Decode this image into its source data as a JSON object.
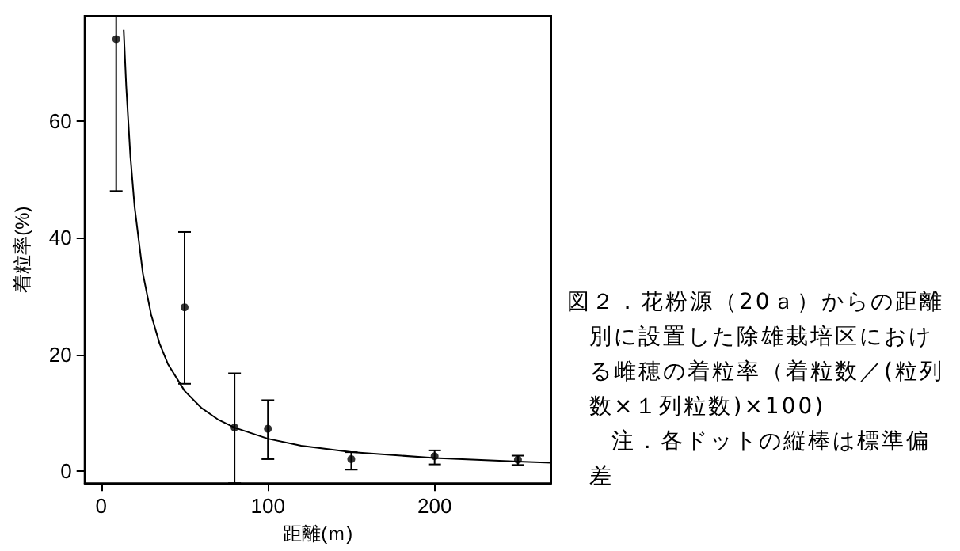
{
  "chart_data": {
    "type": "scatter",
    "xlabel": "距離(ｍ)",
    "ylabel": "着粒率(%)",
    "xlim": [
      -10,
      270
    ],
    "ylim": [
      -2,
      78
    ],
    "xticks": [
      0,
      100,
      200
    ],
    "yticks": [
      0,
      20,
      40,
      60
    ],
    "grid": false,
    "marker": "circle",
    "series": [
      {
        "color": "#000000",
        "x": [
          9,
          50,
          80,
          100,
          150,
          200,
          250
        ],
        "values": [
          74,
          28.1,
          7.5,
          7.3,
          2.1,
          2.6,
          2.0
        ],
        "errors": [
          [
            48,
            78
          ],
          [
            15,
            41
          ],
          [
            -2,
            16.8
          ],
          [
            2.1,
            12.2
          ],
          [
            0.3,
            3.3
          ],
          [
            1.2,
            3.6
          ],
          [
            1.1,
            2.7
          ]
        ]
      },
      {
        "type": "line",
        "color": "#000000",
        "marker": "none",
        "line_style": "solid",
        "x": [
          13.5,
          15,
          17.5,
          20,
          25,
          30,
          35,
          40,
          50,
          60,
          70,
          80,
          100,
          120,
          150,
          200,
          250,
          270
        ],
        "values": [
          75.6,
          66.0,
          54.0,
          45.4,
          33.9,
          26.8,
          21.9,
          18.4,
          13.8,
          10.9,
          8.9,
          7.5,
          5.6,
          4.4,
          3.3,
          2.3,
          1.7,
          1.5
        ]
      }
    ],
    "annotations": [
      "図２．花粉源（20ａ）からの距離別に設置した除雄栽培区における雌穂の着粒率（着粒数／(粒列数×１列粒数)×100)",
      "注．各ドットの縦棒は標準偏差"
    ]
  }
}
